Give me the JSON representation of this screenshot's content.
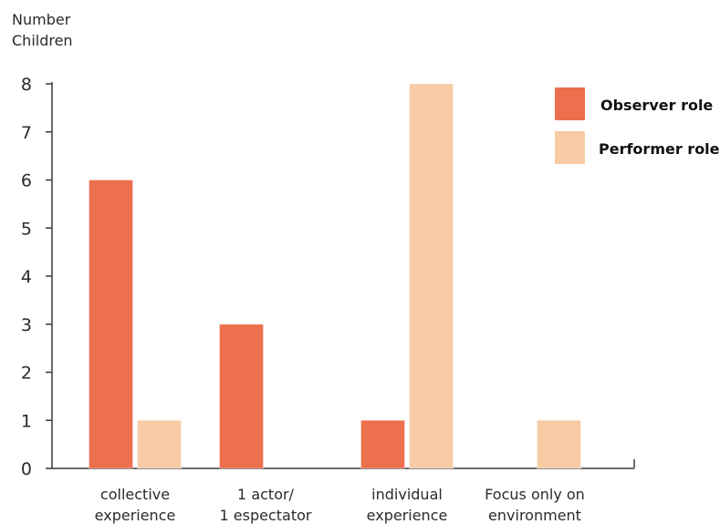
{
  "chart_data": {
    "type": "bar",
    "ylabel": [
      "Number",
      "Children"
    ],
    "ylim": [
      0,
      8
    ],
    "yticks": [
      0,
      1,
      2,
      3,
      4,
      5,
      6,
      7,
      8
    ],
    "categories": [
      [
        "collective",
        "experience"
      ],
      [
        "1 actor/",
        "1 espectator"
      ],
      [
        "individual",
        "experience"
      ],
      [
        "Focus only on",
        "environment"
      ]
    ],
    "series": [
      {
        "name": "Observer role",
        "color": "#ec6f4e",
        "values": [
          6,
          3,
          1,
          0
        ]
      },
      {
        "name": "Performer role",
        "color": "#f8cba4",
        "values": [
          1,
          0,
          8,
          1
        ]
      }
    ],
    "legend": "top-right",
    "grid": false
  }
}
